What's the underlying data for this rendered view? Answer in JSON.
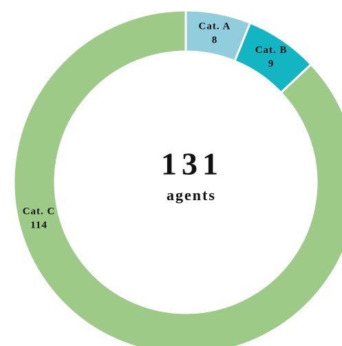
{
  "chart_data": {
    "type": "donut",
    "categories": [
      "Cat. A",
      "Cat. B",
      "Cat. C"
    ],
    "values": [
      8,
      9,
      114
    ],
    "colors": [
      "#92cddd",
      "#14b5c2",
      "#9dca87"
    ],
    "center_value": 131,
    "center_label": "agents"
  }
}
